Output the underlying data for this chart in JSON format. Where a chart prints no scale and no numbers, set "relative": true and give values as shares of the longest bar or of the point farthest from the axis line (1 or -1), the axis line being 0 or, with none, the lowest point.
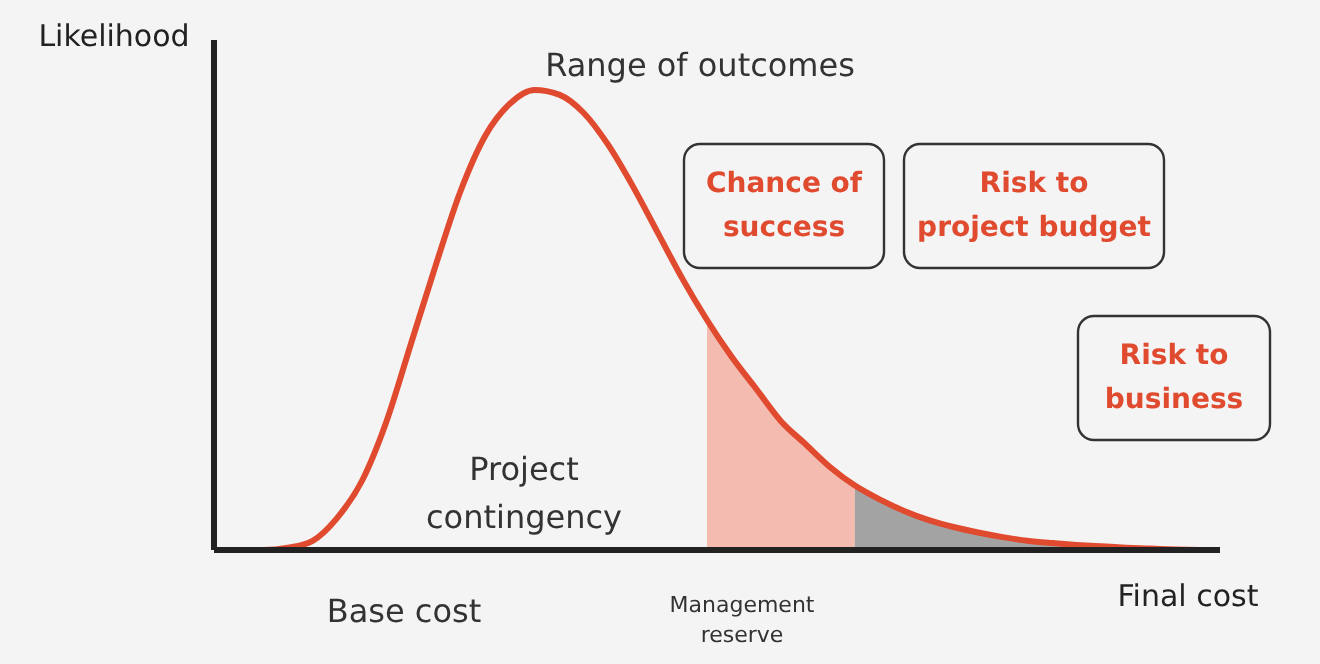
{
  "chart_data": {
    "type": "line",
    "relative": true,
    "ylabel": "Likelihood",
    "xlabel": "Final cost",
    "categories": [
      null,
      null,
      null,
      null,
      null,
      null,
      null,
      null,
      null,
      null,
      null,
      null,
      null,
      null,
      null,
      null,
      null,
      null,
      null,
      null,
      null,
      null,
      null,
      null,
      null,
      null,
      null,
      null,
      null,
      null,
      null,
      null,
      null,
      null,
      null,
      null,
      null,
      null,
      null,
      null,
      null
    ],
    "series": [
      {
        "type": "area",
        "color": "#f4b6a8",
        "values": [
          null,
          null,
          null,
          null,
          null,
          null,
          null,
          null,
          null,
          null,
          null,
          null,
          null,
          null,
          null,
          null,
          null,
          null,
          null,
          null,
          0.5,
          0.42,
          0.35,
          0.28,
          0.23,
          0.18,
          0.14,
          null,
          null,
          null,
          null,
          null,
          null,
          null,
          null,
          null,
          null,
          null,
          null,
          null,
          null
        ]
      },
      {
        "type": "area",
        "color": "#9a9a9a",
        "values": [
          null,
          null,
          null,
          null,
          null,
          null,
          null,
          null,
          null,
          null,
          null,
          null,
          null,
          null,
          null,
          null,
          null,
          null,
          null,
          null,
          null,
          null,
          null,
          null,
          null,
          null,
          0.14,
          0.11,
          0.085,
          0.065,
          0.05,
          0.038,
          0.028,
          0.02,
          0.015,
          0.011,
          0.008,
          0.005,
          0.003,
          0.001,
          0
        ]
      },
      {
        "color": "#e04a2f",
        "values": [
          0,
          0,
          0,
          0.005,
          0.02,
          0.07,
          0.15,
          0.28,
          0.45,
          0.62,
          0.78,
          0.9,
          0.97,
          1.0,
          0.99,
          0.95,
          0.88,
          0.79,
          0.69,
          0.59,
          0.5,
          0.42,
          0.35,
          0.28,
          0.23,
          0.18,
          0.14,
          0.11,
          0.085,
          0.065,
          0.05,
          0.038,
          0.028,
          0.02,
          0.015,
          0.011,
          0.008,
          0.005,
          0.003,
          0.001,
          0
        ]
      }
    ],
    "annotations": [
      "Range of outcomes",
      "Chance of success",
      "Risk to project budget",
      "Risk to business",
      "Project contingency",
      "Base cost",
      "Management reserve"
    ]
  }
}
